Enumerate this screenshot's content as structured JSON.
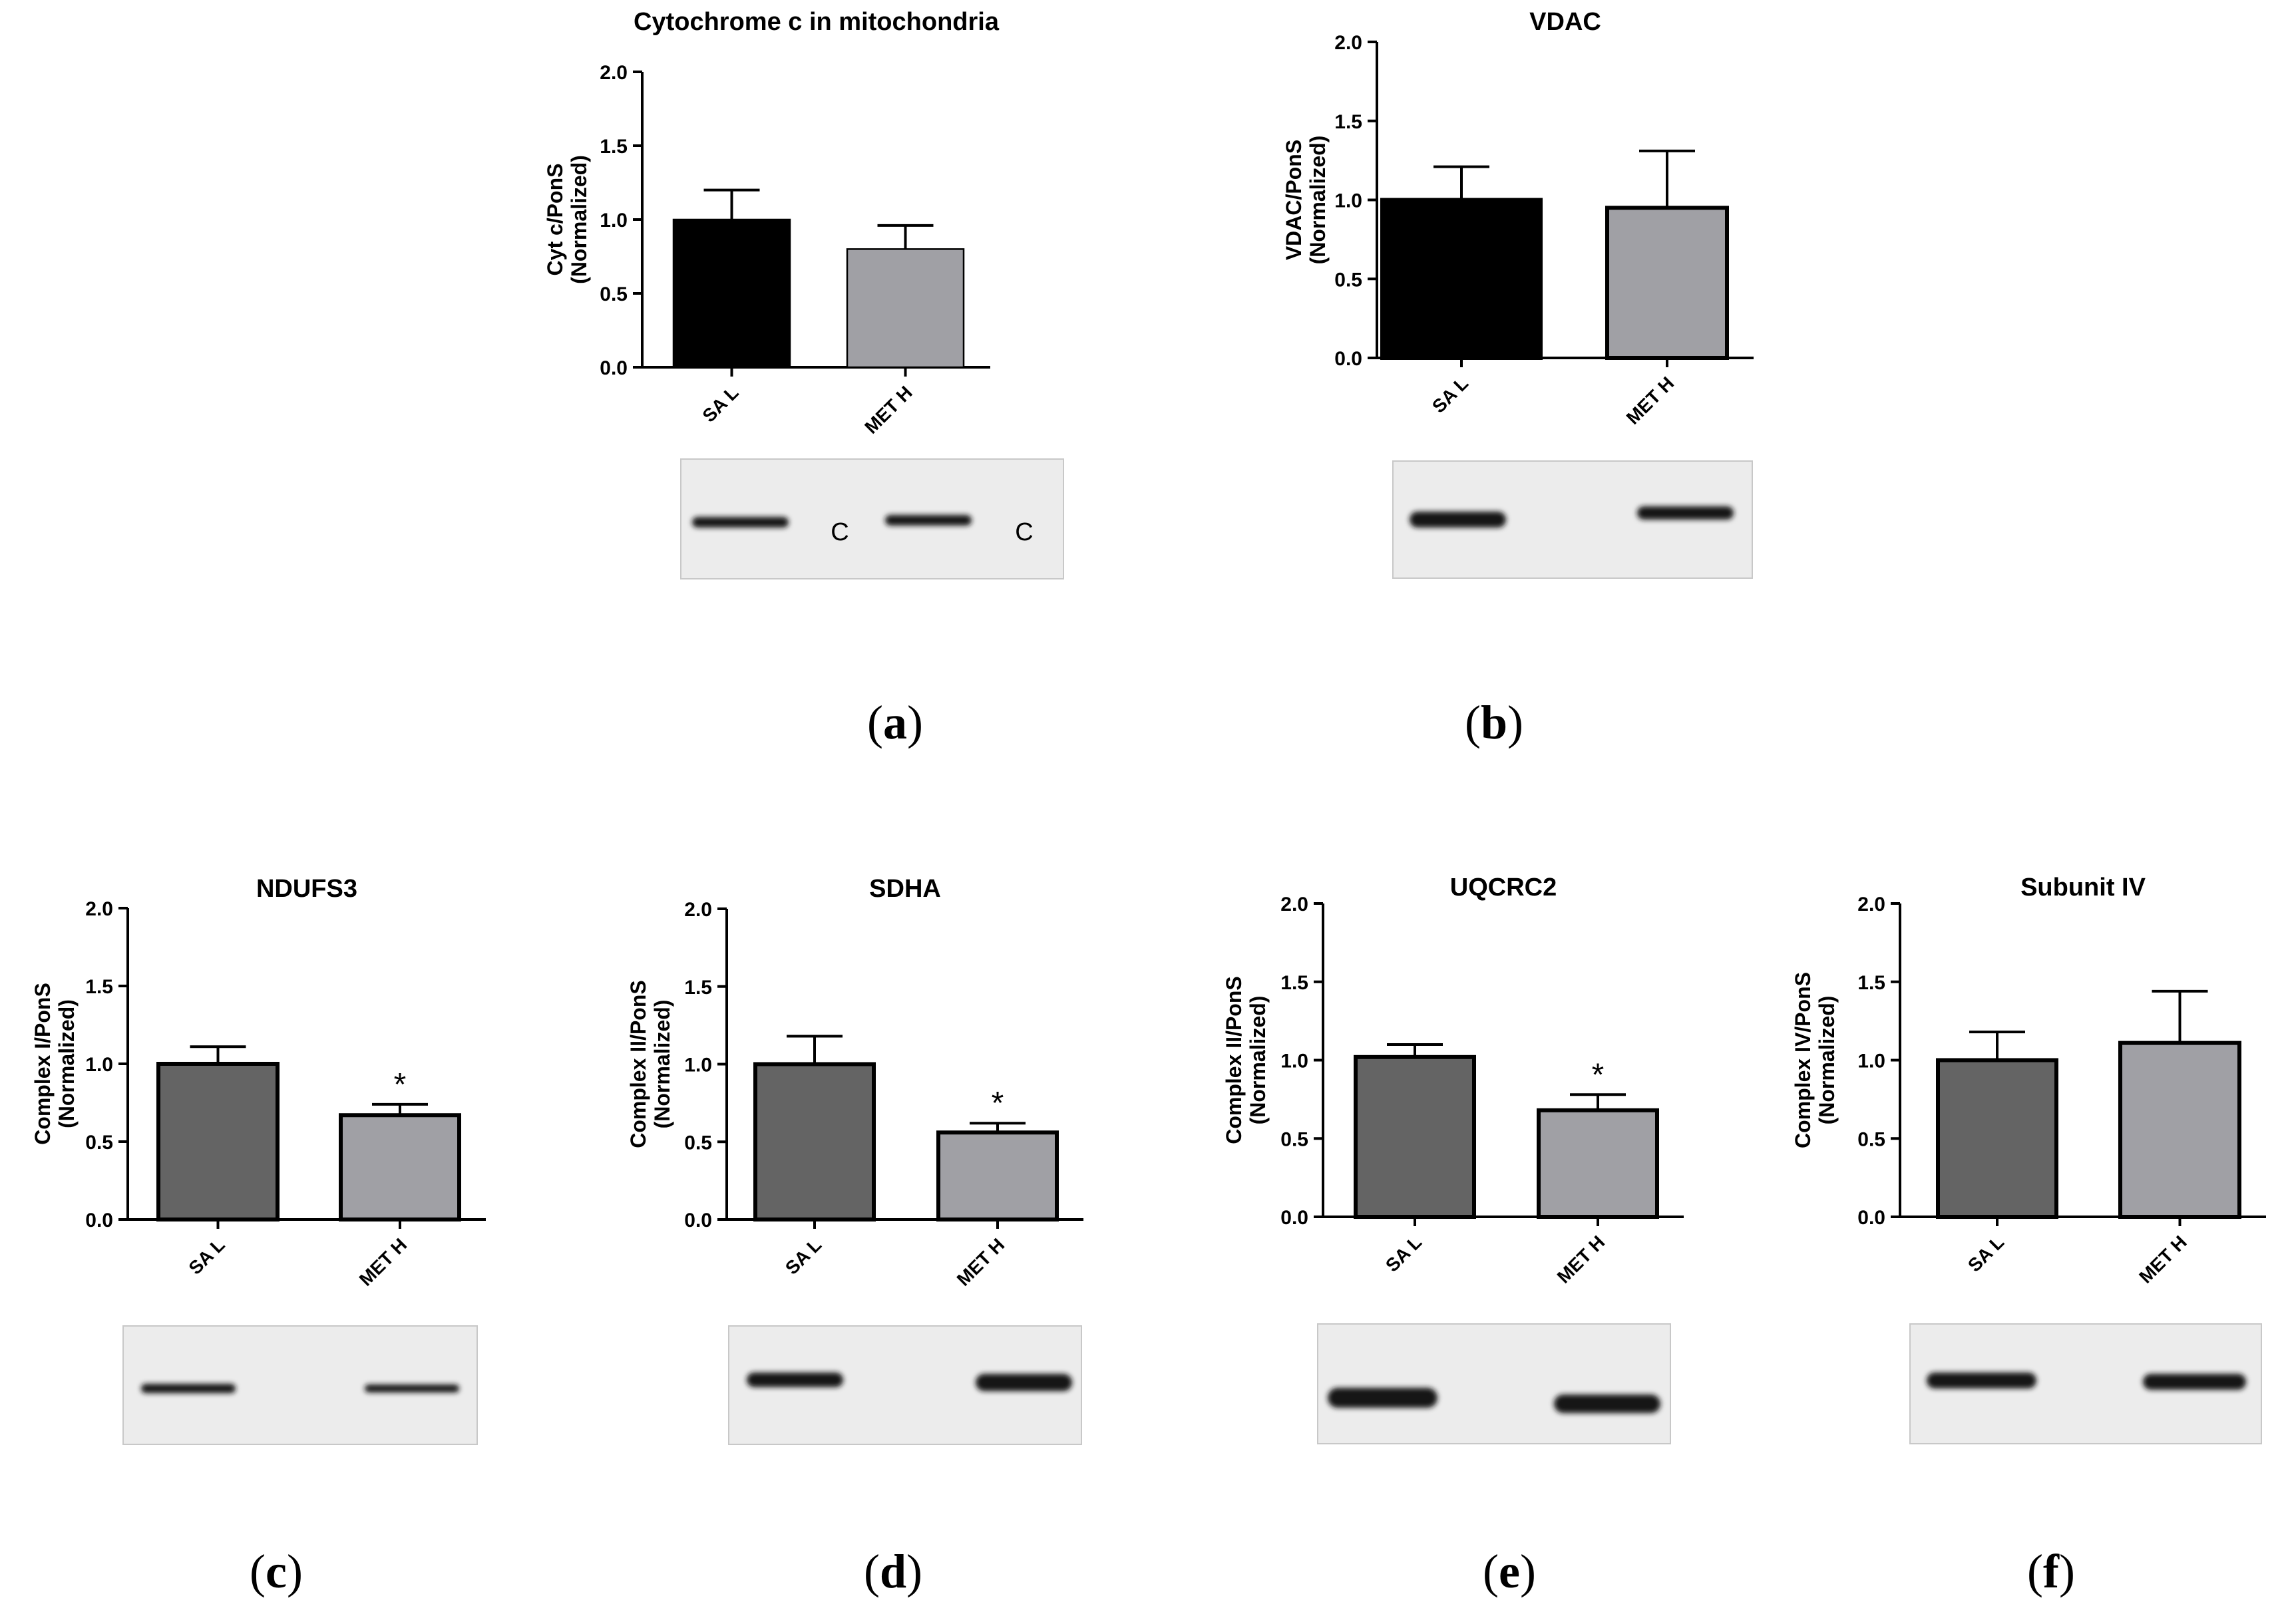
{
  "panel_labels": [
    "(a)",
    "(b)",
    "(c)",
    "(d)",
    "(e)",
    "(f)"
  ],
  "axis": {
    "ticks": [
      "0.0",
      "0.5",
      "1.0",
      "1.5",
      "2.0"
    ],
    "categories": [
      "SA L",
      "MET H"
    ]
  },
  "colors": {
    "black": "#000000",
    "dark_gray": "#646464",
    "light_gray": "#a0a0a5",
    "blot_background": "#ececec",
    "band": "#141414"
  },
  "chart_data": [
    {
      "type": "bar",
      "title": "Cytochrome c in mitochondria",
      "ylabel": [
        "Cyt c/PonS",
        "(Normalized)"
      ],
      "categories": [
        "SA L",
        "MET H"
      ],
      "values": [
        1.0,
        0.8
      ],
      "errors": [
        0.2,
        0.16
      ],
      "ylim": [
        0,
        2.0
      ],
      "significance": [
        "",
        ""
      ],
      "bar_colors": [
        "black",
        "light_gray"
      ],
      "blot_annotations": [
        "C",
        "C"
      ]
    },
    {
      "type": "bar",
      "title": "VDAC",
      "ylabel": [
        "VDAC/PonS",
        "(Normalized)"
      ],
      "categories": [
        "SA L",
        "MET H"
      ],
      "values": [
        1.0,
        0.95
      ],
      "errors": [
        0.21,
        0.36
      ],
      "ylim": [
        0,
        2.0
      ],
      "significance": [
        "",
        ""
      ],
      "bar_colors": [
        "black",
        "light_gray"
      ]
    },
    {
      "type": "bar",
      "title": "NDUFS3",
      "ylabel": [
        "Complex I/PonS",
        "(Normalized)"
      ],
      "categories": [
        "SA L",
        "MET H"
      ],
      "values": [
        1.0,
        0.67
      ],
      "errors": [
        0.11,
        0.07
      ],
      "ylim": [
        0,
        2.0
      ],
      "significance": [
        "",
        "*"
      ],
      "bar_colors": [
        "dark_gray",
        "light_gray"
      ]
    },
    {
      "type": "bar",
      "title": "SDHA",
      "ylabel": [
        "Complex II/PonS",
        "(Normalized)"
      ],
      "categories": [
        "SA L",
        "MET H"
      ],
      "values": [
        1.0,
        0.56
      ],
      "errors": [
        0.18,
        0.06
      ],
      "ylim": [
        0,
        2.0
      ],
      "significance": [
        "",
        "*"
      ],
      "bar_colors": [
        "dark_gray",
        "light_gray"
      ]
    },
    {
      "type": "bar",
      "title": "UQCRC2",
      "ylabel": [
        "Complex II/PonS",
        "(Normalized)"
      ],
      "categories": [
        "SA L",
        "MET H"
      ],
      "values": [
        1.02,
        0.68
      ],
      "errors": [
        0.08,
        0.1
      ],
      "ylim": [
        0,
        2.0
      ],
      "significance": [
        "",
        "*"
      ],
      "bar_colors": [
        "dark_gray",
        "light_gray"
      ]
    },
    {
      "type": "bar",
      "title": "Subunit IV",
      "ylabel": [
        "Complex IV/PonS",
        "(Normalized)"
      ],
      "categories": [
        "SA L",
        "MET H"
      ],
      "values": [
        1.0,
        1.11
      ],
      "errors": [
        0.18,
        0.33
      ],
      "ylim": [
        0,
        2.0
      ],
      "significance": [
        "",
        ""
      ],
      "bar_colors": [
        "dark_gray",
        "light_gray"
      ]
    }
  ]
}
